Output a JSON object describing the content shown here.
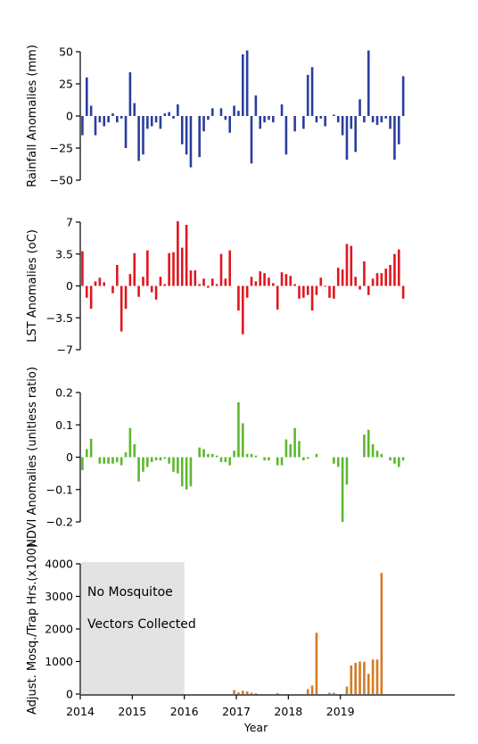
{
  "chart_data": {
    "type": "bar",
    "xlabel": "Year",
    "x_ticks": [
      "2014",
      "2015",
      "2016",
      "2017",
      "2018",
      "2019"
    ],
    "xlim": [
      2014,
      2021.2
    ],
    "time_start": "2014-01",
    "time_step": "month",
    "panels": [
      {
        "name": "rainfall",
        "ylabel": "Rainfall Anomalies (mm)",
        "ylim": [
          -50,
          50
        ],
        "y_ticks": [
          "50",
          "25",
          "0",
          "−25",
          "−50"
        ],
        "y_tick_values": [
          50,
          25,
          0,
          -25,
          -50
        ],
        "color": "#2a3f9c",
        "values": [
          -15,
          30,
          8,
          -15,
          -5,
          -8,
          -5,
          2,
          -5,
          -2,
          -25,
          34,
          10,
          -35,
          -30,
          -10,
          -8,
          -5,
          -10,
          2,
          3,
          -2,
          9,
          -22,
          -30,
          -40,
          0,
          -32,
          -12,
          -3,
          6,
          0,
          6,
          -3,
          -13,
          8,
          4,
          48,
          51,
          -37,
          16,
          -10,
          -5,
          -3,
          -5,
          0,
          9,
          -30,
          0,
          -12,
          0,
          -10,
          32,
          38,
          -5,
          -2,
          -8,
          0,
          1,
          -5,
          -15,
          -34,
          -10,
          -28,
          13,
          -5,
          51,
          -5,
          -7,
          -5,
          -2,
          -10,
          -34,
          -22,
          31
        ]
      },
      {
        "name": "lst",
        "ylabel": "LST Anomalies (oC)",
        "ylim": [
          -7,
          7
        ],
        "y_ticks": [
          "7",
          "3.5",
          "0",
          "−3.5",
          "−7"
        ],
        "y_tick_values": [
          7,
          3.5,
          0,
          -3.5,
          -7
        ],
        "color": "#e0161f",
        "values": [
          3.8,
          -1.3,
          -2.5,
          0.5,
          0.9,
          0.4,
          0,
          -0.8,
          2.3,
          -5.0,
          -2.5,
          1.3,
          3.6,
          -1.2,
          1.0,
          3.9,
          -0.7,
          -1.5,
          1.0,
          0.2,
          3.6,
          3.7,
          7.1,
          4.2,
          6.7,
          1.7,
          1.7,
          0.2,
          0.8,
          -0.2,
          0.8,
          0.2,
          3.5,
          0.8,
          3.9,
          0,
          -2.7,
          -5.3,
          -1.3,
          1.0,
          0.5,
          1.6,
          1.4,
          0.9,
          0.3,
          -2.6,
          1.5,
          1.3,
          1.1,
          0.2,
          -1.4,
          -1.3,
          -1.0,
          -2.7,
          -1.0,
          0.9,
          -0.1,
          -1.3,
          -1.4,
          2.0,
          1.8,
          4.6,
          4.4,
          1.0,
          -0.4,
          2.7,
          -1.0,
          0.8,
          1.4,
          1.4,
          1.9,
          2.3,
          3.5,
          4.0,
          -1.4
        ]
      },
      {
        "name": "ndvi",
        "ylabel": "NDVI Anomalies (unitless ratio)",
        "ylim": [
          -0.2,
          0.2
        ],
        "y_ticks": [
          "0.2",
          "0.1",
          "0",
          "−0.1",
          "−0.2"
        ],
        "y_tick_values": [
          0.2,
          0.1,
          0,
          -0.1,
          -0.2
        ],
        "color": "#5db82e",
        "values": [
          -0.04,
          0.025,
          0.057,
          0,
          -0.02,
          -0.02,
          -0.02,
          -0.02,
          -0.015,
          -0.025,
          0.015,
          0.09,
          0.04,
          -0.075,
          -0.045,
          -0.03,
          -0.015,
          -0.01,
          -0.01,
          -0.005,
          -0.02,
          -0.045,
          -0.05,
          -0.09,
          -0.1,
          -0.09,
          0,
          0.03,
          0.025,
          0.01,
          0.01,
          0.005,
          -0.015,
          -0.015,
          -0.025,
          0.02,
          0.17,
          0.105,
          0.01,
          0.01,
          0.005,
          0,
          -0.01,
          -0.01,
          0,
          -0.025,
          -0.025,
          0.055,
          0.04,
          0.09,
          0.05,
          -0.01,
          -0.005,
          0,
          0.01,
          0,
          0,
          0,
          -0.02,
          -0.03,
          -0.2,
          -0.085,
          0,
          0,
          0,
          0.07,
          0.085,
          0.04,
          0.02,
          0.01,
          0,
          -0.01,
          -0.02,
          -0.03,
          -0.01
        ]
      },
      {
        "name": "mosquito",
        "ylabel": "Adjust. Mosq./Trap Hrs.(x100)",
        "ylim": [
          0,
          4000
        ],
        "y_ticks": [
          "4000",
          "3000",
          "2000",
          "1000",
          "0"
        ],
        "y_tick_values": [
          4000,
          3000,
          2000,
          1000,
          0
        ],
        "color": "#d47a24",
        "no_data_until": "2016-01",
        "annotation_lines": [
          "No Mosquitoe",
          "Vectors Collected"
        ],
        "values": [
          null,
          null,
          null,
          null,
          null,
          null,
          null,
          null,
          null,
          null,
          null,
          null,
          null,
          null,
          null,
          null,
          null,
          null,
          null,
          null,
          null,
          null,
          null,
          null,
          0,
          0,
          0,
          0,
          0,
          0,
          0,
          0,
          0,
          0,
          0,
          120,
          50,
          100,
          80,
          40,
          20,
          0,
          0,
          0,
          0,
          30,
          0,
          0,
          0,
          0,
          0,
          0,
          150,
          260,
          1880,
          0,
          0,
          40,
          40,
          0,
          0,
          230,
          880,
          960,
          1000,
          990,
          620,
          1060,
          1060,
          3720,
          0,
          0,
          0,
          0,
          0
        ]
      }
    ]
  }
}
